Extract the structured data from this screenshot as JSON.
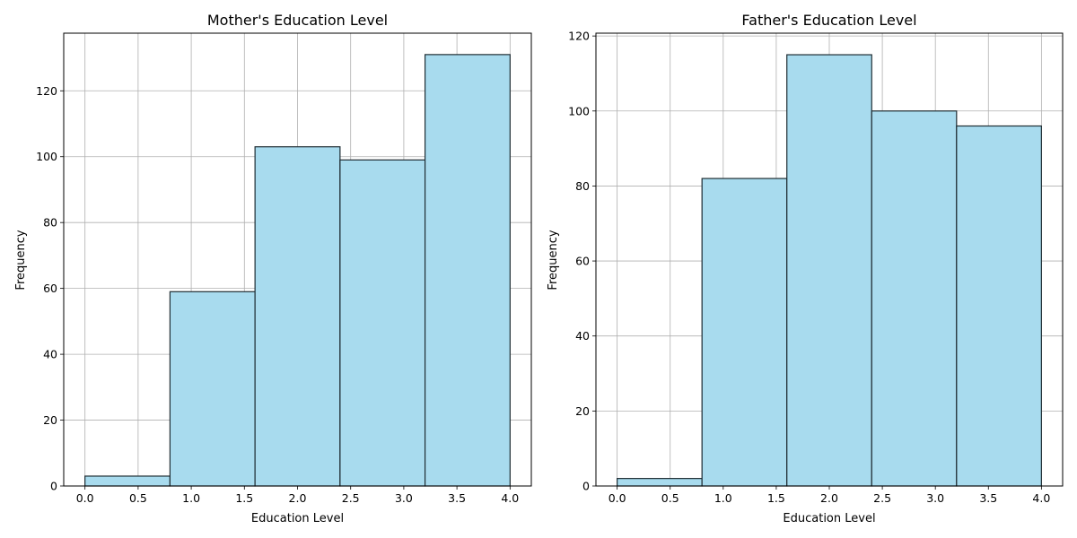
{
  "chart_data": [
    {
      "type": "bar",
      "title": "Mother's Education Level",
      "xlabel": "Education Level",
      "ylabel": "Frequency",
      "bin_edges": [
        0.0,
        0.8,
        1.6,
        2.4,
        3.2,
        4.0
      ],
      "values": [
        3,
        59,
        103,
        99,
        131
      ],
      "xlim": [
        -0.2,
        4.2
      ],
      "ylim": [
        0,
        137.5
      ],
      "xticks": [
        "0.0",
        "0.5",
        "1.0",
        "1.5",
        "2.0",
        "2.5",
        "3.0",
        "3.5",
        "4.0"
      ],
      "yticks": [
        "0",
        "20",
        "40",
        "60",
        "80",
        "100",
        "120"
      ],
      "grid": true,
      "bar_color": "#a8dbee",
      "edge_color": "#1f2d33"
    },
    {
      "type": "bar",
      "title": "Father's Education Level",
      "xlabel": "Education Level",
      "ylabel": "Frequency",
      "bin_edges": [
        0.0,
        0.8,
        1.6,
        2.4,
        3.2,
        4.0
      ],
      "values": [
        2,
        82,
        115,
        100,
        96
      ],
      "xlim": [
        -0.2,
        4.2
      ],
      "ylim": [
        0,
        120.75
      ],
      "xticks": [
        "0.0",
        "0.5",
        "1.0",
        "1.5",
        "2.0",
        "2.5",
        "3.0",
        "3.5",
        "4.0"
      ],
      "yticks": [
        "0",
        "20",
        "40",
        "60",
        "80",
        "100",
        "120"
      ],
      "grid": true,
      "bar_color": "#a8dbee",
      "edge_color": "#1f2d33"
    }
  ]
}
